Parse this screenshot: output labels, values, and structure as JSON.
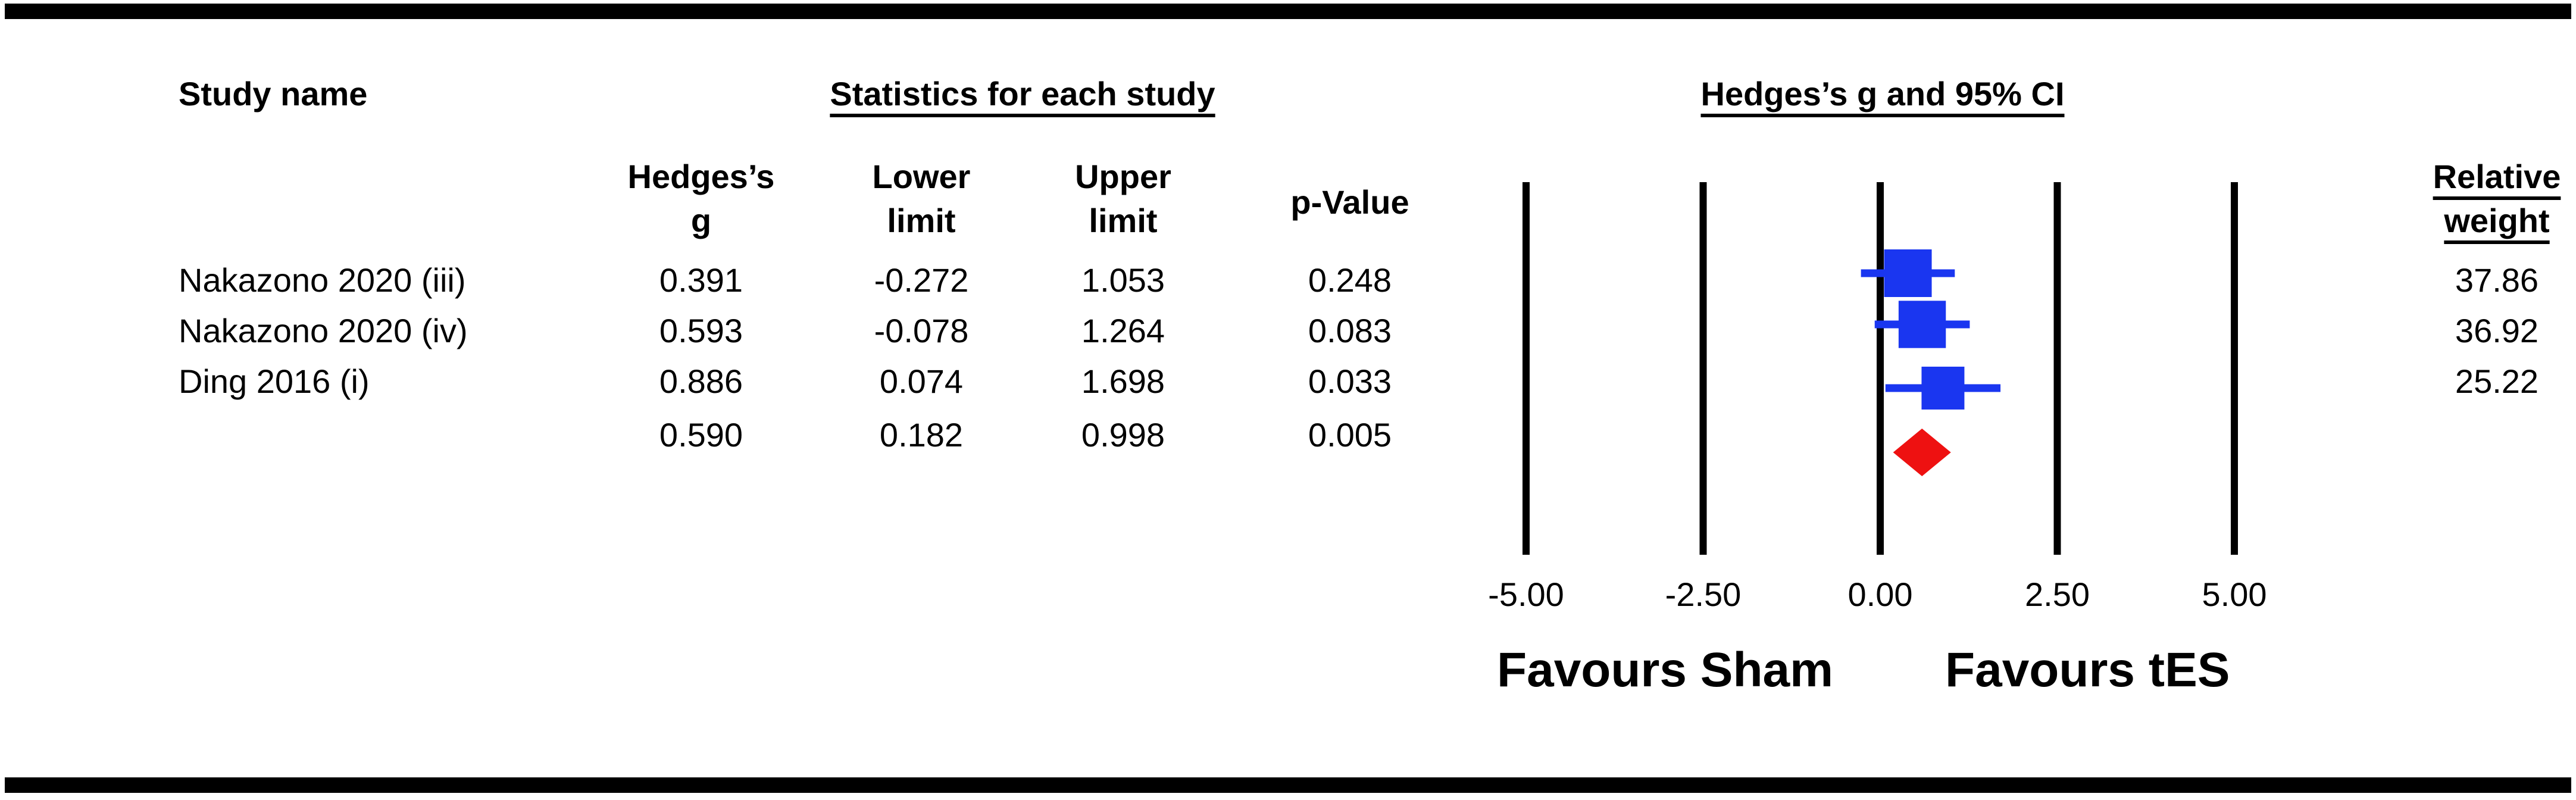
{
  "headers": {
    "study_name": "Study name",
    "statistics": "Statistics for each study",
    "ci_title": "Hedges’s g and 95% CI",
    "hedges_g_line1": "Hedges’s",
    "hedges_g_line2": "g",
    "lower_line1": "Lower",
    "lower_line2": "limit",
    "upper_line1": "Upper",
    "upper_line2": "limit",
    "p_value": "p-Value",
    "rel_weight_line1": "Relative",
    "rel_weight_line2": "weight"
  },
  "rows": [
    {
      "name": "Nakazono 2020 (iii)",
      "g": "0.391",
      "lower": "-0.272",
      "upper": "1.053",
      "p": "0.248",
      "weight": "37.86"
    },
    {
      "name": "Nakazono 2020 (iv)",
      "g": "0.593",
      "lower": "-0.078",
      "upper": "1.264",
      "p": "0.083",
      "weight": "36.92"
    },
    {
      "name": "Ding 2016 (i)",
      "g": "0.886",
      "lower": "0.074",
      "upper": "1.698",
      "p": "0.033",
      "weight": "25.22"
    }
  ],
  "summary": {
    "g": "0.590",
    "lower": "0.182",
    "upper": "0.998",
    "p": "0.005"
  },
  "favours": {
    "left": "Favours Sham",
    "right": "Favours tES"
  },
  "chart_data": {
    "type": "forest",
    "x_ticks": [
      -5.0,
      -2.5,
      0.0,
      2.5,
      5.0
    ],
    "x_tick_labels": [
      "-5.00",
      "-2.50",
      "0.00",
      "2.50",
      "5.00"
    ],
    "xlim": [
      -5.0,
      5.0
    ],
    "studies": [
      {
        "name": "Nakazono 2020 (iii)",
        "g": 0.391,
        "lower": -0.272,
        "upper": 1.053,
        "weight": 37.86
      },
      {
        "name": "Nakazono 2020 (iv)",
        "g": 0.593,
        "lower": -0.078,
        "upper": 1.264,
        "weight": 36.92
      },
      {
        "name": "Ding 2016 (i)",
        "g": 0.886,
        "lower": 0.074,
        "upper": 1.698,
        "weight": 25.22
      }
    ],
    "summary": {
      "g": 0.59,
      "lower": 0.182,
      "upper": 0.998
    },
    "colors": {
      "study": "#1a36f0",
      "summary": "#ee1111",
      "gridline": "#000000"
    }
  }
}
